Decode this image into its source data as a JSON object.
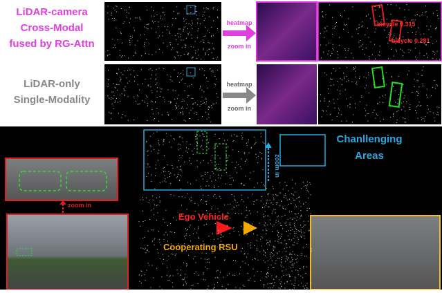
{
  "rows": [
    {
      "label": [
        "LiDAR-camera",
        "Cross-Modal",
        "fused by RG-Attn"
      ],
      "arrow_label": [
        "heatmap",
        "zoom in"
      ],
      "detections": [
        "bicycle 0.315",
        "bicycle 0.281"
      ]
    },
    {
      "label": [
        "LiDAR-only",
        "Single-Modality"
      ],
      "arrow_label": [
        "heatmap",
        "zoom in"
      ]
    }
  ],
  "scene": {
    "area_label": [
      "Chanllenging",
      "Areas"
    ],
    "zoom_vertical": "zoom in",
    "zoom_left": "zoom in",
    "ego": "Ego Vehicle",
    "rsu": "Cooperating RSU"
  }
}
